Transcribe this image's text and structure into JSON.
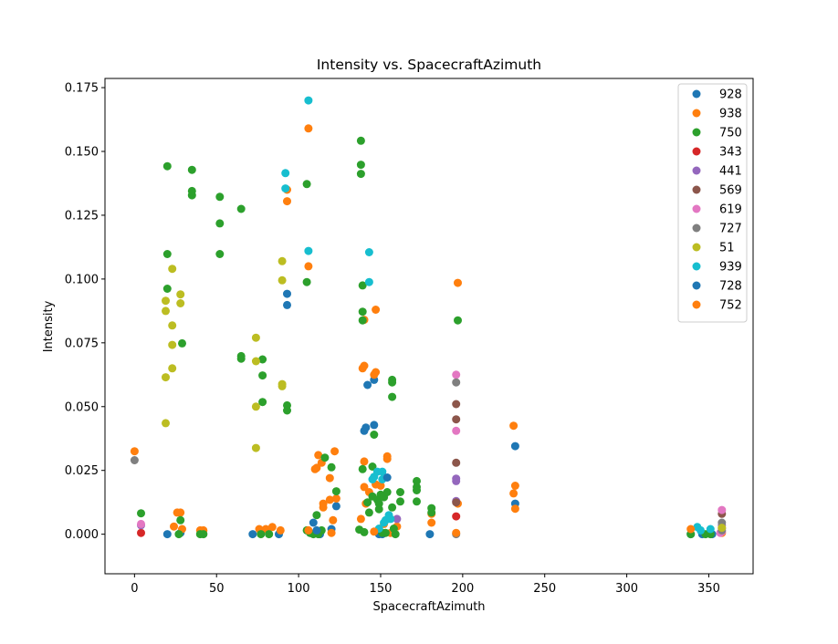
{
  "chart_data": {
    "type": "scatter",
    "title": "Intensity vs. SpacecraftAzimuth",
    "xlabel": "SpacecraftAzimuth",
    "ylabel": "Intensity",
    "xlim": [
      -18,
      377
    ],
    "ylim": [
      -0.0155,
      0.1786
    ],
    "xticks": [
      0,
      50,
      100,
      150,
      200,
      250,
      300,
      350
    ],
    "yticks": [
      0.0,
      0.025,
      0.05,
      0.075,
      0.1,
      0.125,
      0.15,
      0.175
    ],
    "ytick_labels": [
      "0.000",
      "0.025",
      "0.050",
      "0.075",
      "0.100",
      "0.125",
      "0.150",
      "0.175"
    ],
    "grid": false,
    "legend_position": "upper right",
    "series": [
      {
        "name": "928",
        "color": "#1f77b4",
        "points": [
          [
            20,
            0.0
          ],
          [
            28,
            0.0005
          ],
          [
            72,
            0.0
          ],
          [
            88,
            0.0
          ],
          [
            93,
            0.0942
          ],
          [
            93,
            0.0898
          ],
          [
            107,
            0.0005
          ],
          [
            113,
            0.0
          ],
          [
            120,
            0.002
          ],
          [
            123,
            0.011
          ],
          [
            140,
            0.0405
          ],
          [
            141,
            0.0418
          ],
          [
            142,
            0.0585
          ],
          [
            146,
            0.0605
          ],
          [
            146,
            0.0428
          ],
          [
            149,
            0.0
          ],
          [
            151,
            0.0
          ],
          [
            180,
            0.0
          ],
          [
            232,
            0.0345
          ],
          [
            232,
            0.012
          ],
          [
            339,
            0.0
          ],
          [
            346,
            0.0
          ],
          [
            352,
            0.0
          ]
        ]
      },
      {
        "name": "938",
        "color": "#ff7f0e",
        "points": [
          [
            0,
            0.0325
          ],
          [
            24,
            0.003
          ],
          [
            26,
            0.0085
          ],
          [
            28,
            0.0085
          ],
          [
            29,
            0.002
          ],
          [
            40,
            0.0015
          ],
          [
            42,
            0.0015
          ],
          [
            76,
            0.002
          ],
          [
            80,
            0.002
          ],
          [
            84,
            0.0028
          ],
          [
            89,
            0.0015
          ],
          [
            93,
            0.135
          ],
          [
            93,
            0.1305
          ],
          [
            106,
            0.159
          ],
          [
            106,
            0.105
          ],
          [
            109,
            0.0002
          ],
          [
            110,
            0.0255
          ],
          [
            111,
            0.026
          ],
          [
            112,
            0.031
          ],
          [
            114,
            0.028
          ],
          [
            115,
            0.0105
          ],
          [
            115,
            0.012
          ],
          [
            119,
            0.022
          ],
          [
            119,
            0.0135
          ],
          [
            121,
            0.0055
          ],
          [
            122,
            0.0325
          ],
          [
            123,
            0.014
          ],
          [
            138,
            0.006
          ],
          [
            139,
            0.065
          ],
          [
            140,
            0.066
          ],
          [
            140,
            0.084
          ],
          [
            140,
            0.0285
          ],
          [
            140,
            0.0185
          ],
          [
            141,
            0.012
          ],
          [
            143,
            0.0165
          ],
          [
            146,
            0.0625
          ],
          [
            147,
            0.0635
          ],
          [
            147,
            0.088
          ],
          [
            147,
            0.0195
          ],
          [
            150,
            0.019
          ],
          [
            152,
            0.004
          ],
          [
            154,
            0.0305
          ],
          [
            154,
            0.0295
          ],
          [
            156,
            0.0005
          ],
          [
            160,
            0.003
          ],
          [
            181,
            0.008
          ],
          [
            181,
            0.0045
          ],
          [
            197,
            0.0985
          ],
          [
            197,
            0.012
          ],
          [
            231,
            0.016
          ],
          [
            231,
            0.0425
          ],
          [
            232,
            0.019
          ],
          [
            232,
            0.01
          ],
          [
            358,
            0.0005
          ]
        ]
      },
      {
        "name": "750",
        "color": "#2ca02c",
        "points": [
          [
            4,
            0.0082
          ],
          [
            20,
            0.1442
          ],
          [
            20,
            0.1098
          ],
          [
            20,
            0.0962
          ],
          [
            27,
            0.0
          ],
          [
            28,
            0.0055
          ],
          [
            29,
            0.0748
          ],
          [
            35,
            0.1428
          ],
          [
            35,
            0.1345
          ],
          [
            35,
            0.1328
          ],
          [
            40,
            0.0
          ],
          [
            42,
            0.0
          ],
          [
            52,
            0.1322
          ],
          [
            52,
            0.1218
          ],
          [
            52,
            0.1098
          ],
          [
            65,
            0.1275
          ],
          [
            65,
            0.0698
          ],
          [
            65,
            0.0688
          ],
          [
            77,
            0.0
          ],
          [
            78,
            0.0685
          ],
          [
            78,
            0.0622
          ],
          [
            78,
            0.0518
          ],
          [
            82,
            0.0
          ],
          [
            93,
            0.0505
          ],
          [
            93,
            0.0485
          ],
          [
            105,
            0.1372
          ],
          [
            105,
            0.0988
          ],
          [
            105,
            0.0015
          ],
          [
            107,
            0.0005
          ],
          [
            109,
            0.0
          ],
          [
            111,
            0.0075
          ],
          [
            112,
            0.0
          ],
          [
            114,
            0.0015
          ],
          [
            116,
            0.03
          ],
          [
            120,
            0.0262
          ],
          [
            123,
            0.0168
          ],
          [
            137,
            0.0018
          ],
          [
            138,
            0.1542
          ],
          [
            138,
            0.1448
          ],
          [
            138,
            0.1412
          ],
          [
            139,
            0.0975
          ],
          [
            139,
            0.0872
          ],
          [
            139,
            0.0838
          ],
          [
            139,
            0.0255
          ],
          [
            140,
            0.0008
          ],
          [
            142,
            0.0125
          ],
          [
            143,
            0.0085
          ],
          [
            145,
            0.0265
          ],
          [
            145,
            0.0148
          ],
          [
            146,
            0.039
          ],
          [
            148,
            0.0135
          ],
          [
            149,
            0.0098
          ],
          [
            149,
            0.012
          ],
          [
            150,
            0.0155
          ],
          [
            151,
            0.0005
          ],
          [
            152,
            0.0145
          ],
          [
            153,
            0.0005
          ],
          [
            154,
            0.0165
          ],
          [
            157,
            0.0605
          ],
          [
            157,
            0.0595
          ],
          [
            157,
            0.0538
          ],
          [
            157,
            0.0105
          ],
          [
            158,
            0.0022
          ],
          [
            159,
            0.0
          ],
          [
            162,
            0.0165
          ],
          [
            162,
            0.0128
          ],
          [
            172,
            0.0208
          ],
          [
            172,
            0.0185
          ],
          [
            172,
            0.0172
          ],
          [
            172,
            0.0128
          ],
          [
            181,
            0.0102
          ],
          [
            181,
            0.0085
          ],
          [
            197,
            0.0838
          ],
          [
            339,
            0.0
          ],
          [
            348,
            0.0
          ],
          [
            351,
            0.0
          ]
        ]
      },
      {
        "name": "343",
        "color": "#d62728",
        "points": [
          [
            4,
            0.0005
          ],
          [
            196,
            0.007
          ]
        ]
      },
      {
        "name": "441",
        "color": "#9467bd",
        "points": [
          [
            4,
            0.0035
          ],
          [
            160,
            0.006
          ],
          [
            196,
            0.0218
          ],
          [
            196,
            0.0208
          ],
          [
            196,
            0.013
          ],
          [
            358,
            0.0035
          ]
        ]
      },
      {
        "name": "569",
        "color": "#8c564b",
        "points": [
          [
            196,
            0.051
          ],
          [
            196,
            0.045
          ],
          [
            196,
            0.028
          ],
          [
            196,
            0.0125
          ],
          [
            358,
            0.008
          ]
        ]
      },
      {
        "name": "619",
        "color": "#e377c2",
        "points": [
          [
            4,
            0.004
          ],
          [
            196,
            0.0625
          ],
          [
            196,
            0.0405
          ],
          [
            357,
            0.0005
          ],
          [
            358,
            0.0095
          ],
          [
            358,
            0.001
          ]
        ]
      },
      {
        "name": "727",
        "color": "#7f7f7f",
        "points": [
          [
            0,
            0.029
          ],
          [
            196,
            0.0595
          ],
          [
            196,
            0.0
          ],
          [
            358,
            0.0045
          ],
          [
            358,
            0.0022
          ],
          [
            358,
            0.0015
          ]
        ]
      },
      {
        "name": "51",
        "color": "#bcbd22",
        "points": [
          [
            19,
            0.0915
          ],
          [
            19,
            0.0875
          ],
          [
            19,
            0.0615
          ],
          [
            19,
            0.0435
          ],
          [
            23,
            0.104
          ],
          [
            23,
            0.0818
          ],
          [
            23,
            0.0742
          ],
          [
            23,
            0.065
          ],
          [
            28,
            0.094
          ],
          [
            28,
            0.0905
          ],
          [
            74,
            0.077
          ],
          [
            74,
            0.0678
          ],
          [
            74,
            0.05
          ],
          [
            74,
            0.0338
          ],
          [
            90,
            0.107
          ],
          [
            90,
            0.0995
          ],
          [
            90,
            0.0588
          ],
          [
            90,
            0.058
          ],
          [
            358,
            0.0025
          ]
        ]
      },
      {
        "name": "939",
        "color": "#17becf",
        "points": [
          [
            92,
            0.1415
          ],
          [
            92,
            0.1355
          ],
          [
            106,
            0.17
          ],
          [
            106,
            0.111
          ],
          [
            143,
            0.1105
          ],
          [
            143,
            0.0988
          ],
          [
            145,
            0.0215
          ],
          [
            146,
            0.0225
          ],
          [
            148,
            0.0245
          ],
          [
            149,
            0.0022
          ],
          [
            151,
            0.0245
          ],
          [
            151,
            0.0215
          ],
          [
            152,
            0.0045
          ],
          [
            153,
            0.0055
          ],
          [
            155,
            0.0075
          ],
          [
            156,
            0.006
          ],
          [
            343,
            0.0028
          ],
          [
            345,
            0.0015
          ],
          [
            351,
            0.002
          ]
        ]
      },
      {
        "name": "728",
        "color": "#1f77b4",
        "points": [
          [
            109,
            0.0045
          ],
          [
            111,
            0.0015
          ],
          [
            154,
            0.0222
          ]
        ]
      },
      {
        "name": "752",
        "color": "#ff7f0e",
        "points": [
          [
            106,
            0.0015
          ],
          [
            120,
            0.0005
          ],
          [
            146,
            0.001
          ],
          [
            196,
            0.0005
          ],
          [
            339,
            0.002
          ]
        ]
      }
    ]
  }
}
